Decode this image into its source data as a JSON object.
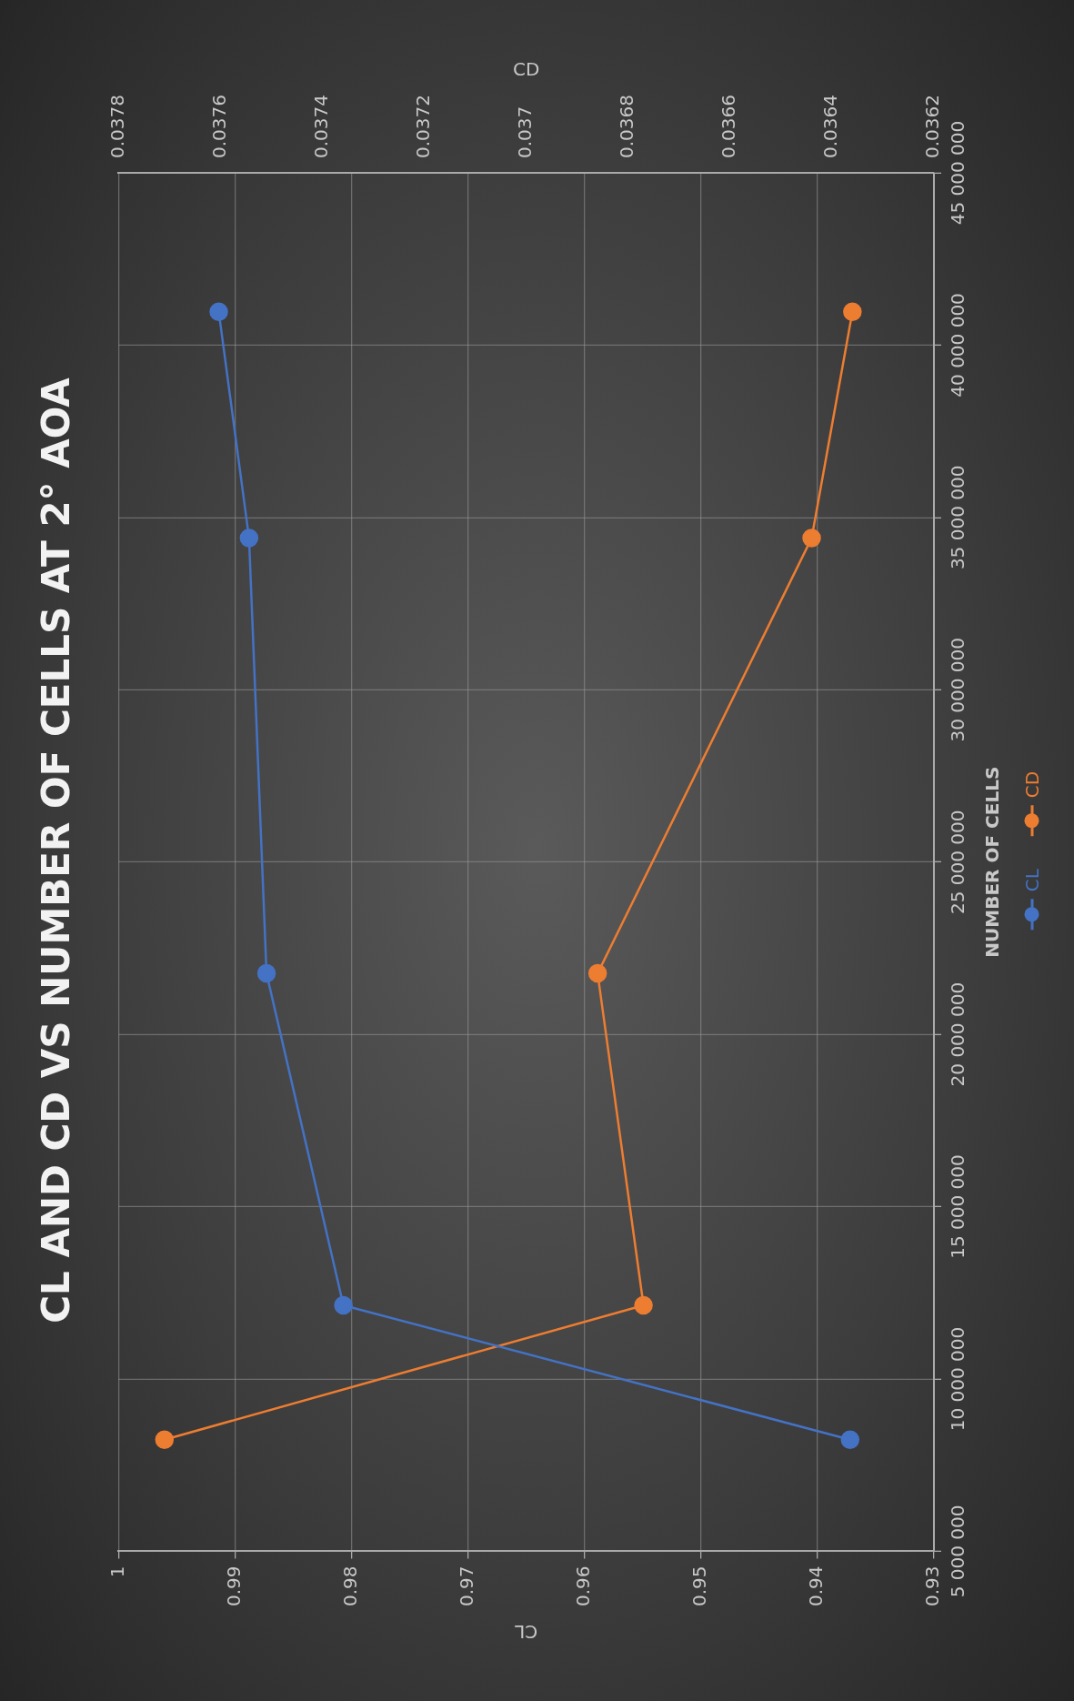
{
  "chart_data": {
    "type": "line",
    "title": "CL AND CD VS NUMBER OF CELLS AT 2° AOA",
    "xlabel": "CL",
    "x2label": "CD",
    "ylabel": "NUMBER OF CELLS",
    "series": [
      {
        "name": "CL",
        "color": "#4472c4",
        "x": [
          0.9372,
          0.9807,
          0.9873,
          0.9888,
          0.9914
        ],
        "values": [
          8240000,
          12140000,
          21770000,
          34400000,
          40970000
        ]
      },
      {
        "name": "CD",
        "color": "#ed7d31",
        "axis": "x2",
        "x": [
          0.03771,
          0.03677,
          0.03686,
          0.03644,
          0.03636
        ],
        "values": [
          8240000,
          12140000,
          21770000,
          34400000,
          40970000
        ]
      }
    ],
    "ylim": [
      5000000,
      45000000
    ],
    "yticks": [
      {
        "value": 5000000,
        "label": "5 000 000"
      },
      {
        "value": 10000000,
        "label": "10 000 000"
      },
      {
        "value": 15000000,
        "label": "15 000 000"
      },
      {
        "value": 20000000,
        "label": "20 000 000"
      },
      {
        "value": 25000000,
        "label": "25 000 000"
      },
      {
        "value": 30000000,
        "label": "30 000 000"
      },
      {
        "value": 35000000,
        "label": "35 000 000"
      },
      {
        "value": 40000000,
        "label": "40 000 000"
      },
      {
        "value": 45000000,
        "label": "45 000 000"
      }
    ],
    "xlim": [
      1,
      0.93
    ],
    "xticks": [
      0.93,
      0.94,
      0.95,
      0.96,
      0.97,
      0.98,
      0.99,
      1
    ],
    "x2lim": [
      0.0378,
      0.0362
    ],
    "x2ticks": [
      0.0362,
      0.0364,
      0.0366,
      0.0368,
      0.037,
      0.0372,
      0.0374,
      0.0376,
      0.0378
    ],
    "grid": true,
    "legend": "right",
    "marker": "circle",
    "line_style": "solid"
  }
}
